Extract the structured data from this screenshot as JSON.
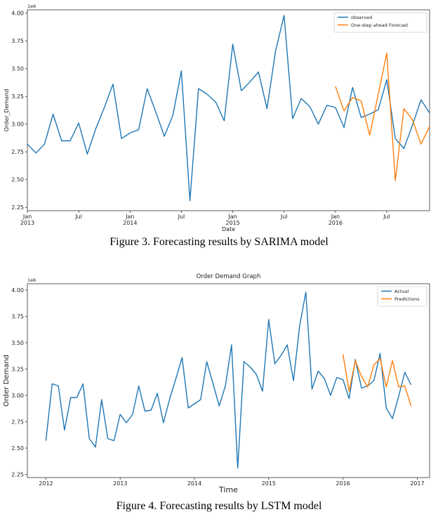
{
  "captions": {
    "fig3": "Figure 3. Forecasting results by SARIMA model",
    "fig4": "Figure 4. Forecasting results by LSTM model"
  },
  "chart_data": [
    {
      "type": "line",
      "title": "",
      "xlabel": "Date",
      "ylabel": "Order_Demand",
      "y_offset_label": "1e6",
      "ylim": [
        2.22,
        4.03
      ],
      "xlim": [
        "2013-01",
        "2016-12"
      ],
      "y_ticks": [
        "2.25",
        "2.50",
        "2.75",
        "3.00",
        "3.25",
        "3.50",
        "3.75",
        "4.00"
      ],
      "x_tick_labels": [
        {
          "at": "2013-01",
          "line1": "Jan",
          "line2": "2013"
        },
        {
          "at": "2013-07",
          "line1": "Jul",
          "line2": ""
        },
        {
          "at": "2014-01",
          "line1": "Jan",
          "line2": "2014"
        },
        {
          "at": "2014-07",
          "line1": "Jul",
          "line2": ""
        },
        {
          "at": "2015-01",
          "line1": "Jan",
          "line2": "2015"
        },
        {
          "at": "2015-07",
          "line1": "Jul",
          "line2": ""
        },
        {
          "at": "2016-01",
          "line1": "Jan",
          "line2": "2016"
        },
        {
          "at": "2016-07",
          "line1": "Jul",
          "line2": ""
        }
      ],
      "legend_position": "top-right",
      "grid": false,
      "series": [
        {
          "name": "observed",
          "color": "#1f77b4",
          "x": [
            "2013-01",
            "2013-02",
            "2013-03",
            "2013-04",
            "2013-05",
            "2013-06",
            "2013-07",
            "2013-08",
            "2013-09",
            "2013-10",
            "2013-11",
            "2013-12",
            "2014-01",
            "2014-02",
            "2014-03",
            "2014-04",
            "2014-05",
            "2014-06",
            "2014-07",
            "2014-08",
            "2014-09",
            "2014-10",
            "2014-11",
            "2014-12",
            "2015-01",
            "2015-02",
            "2015-03",
            "2015-04",
            "2015-05",
            "2015-06",
            "2015-07",
            "2015-08",
            "2015-09",
            "2015-10",
            "2015-11",
            "2015-12",
            "2016-01",
            "2016-02",
            "2016-03",
            "2016-04",
            "2016-05",
            "2016-06",
            "2016-07",
            "2016-08",
            "2016-09",
            "2016-10",
            "2016-11",
            "2016-12"
          ],
          "values": [
            2.82,
            2.74,
            2.82,
            3.09,
            2.85,
            2.85,
            3.01,
            2.73,
            2.96,
            3.15,
            3.36,
            2.87,
            2.92,
            2.95,
            3.32,
            3.11,
            2.89,
            3.08,
            3.48,
            2.31,
            3.32,
            3.27,
            3.2,
            3.03,
            3.72,
            3.3,
            3.38,
            3.47,
            3.14,
            3.66,
            3.98,
            3.05,
            3.23,
            3.16,
            3.0,
            3.17,
            3.15,
            2.97,
            3.33,
            3.06,
            3.09,
            3.13,
            3.4,
            2.87,
            2.78,
            2.99,
            3.22,
            3.1
          ]
        },
        {
          "name": "One-step ahead Forecast",
          "color": "#ff7f0e",
          "x": [
            "2016-01",
            "2016-02",
            "2016-03",
            "2016-04",
            "2016-05",
            "2016-06",
            "2016-07",
            "2016-08",
            "2016-09",
            "2016-10",
            "2016-11",
            "2016-12"
          ],
          "values": [
            3.34,
            3.12,
            3.24,
            3.21,
            2.9,
            3.27,
            3.64,
            2.49,
            3.14,
            3.04,
            2.82,
            2.98
          ]
        }
      ]
    },
    {
      "type": "line",
      "title": "Order Demand Graph",
      "xlabel": "Time",
      "ylabel": "Order Demand",
      "y_offset_label": "1e6",
      "ylim": [
        2.22,
        4.06
      ],
      "xlim": [
        "2011-10",
        "2017-03"
      ],
      "y_ticks": [
        "2.25",
        "2.50",
        "2.75",
        "3.00",
        "3.25",
        "3.50",
        "3.75",
        "4.00"
      ],
      "x_tick_labels": [
        {
          "at": "2012-01",
          "line1": "2012",
          "line2": ""
        },
        {
          "at": "2013-01",
          "line1": "2013",
          "line2": ""
        },
        {
          "at": "2014-01",
          "line1": "2014",
          "line2": ""
        },
        {
          "at": "2015-01",
          "line1": "2015",
          "line2": ""
        },
        {
          "at": "2016-01",
          "line1": "2016",
          "line2": ""
        },
        {
          "at": "2017-01",
          "line1": "2017",
          "line2": ""
        }
      ],
      "legend_position": "top-right",
      "grid": false,
      "series": [
        {
          "name": "Actual",
          "color": "#1f77b4",
          "x": [
            "2012-01",
            "2012-02",
            "2012-03",
            "2012-04",
            "2012-05",
            "2012-06",
            "2012-07",
            "2012-08",
            "2012-09",
            "2012-10",
            "2012-11",
            "2012-12",
            "2013-01",
            "2013-02",
            "2013-03",
            "2013-04",
            "2013-05",
            "2013-06",
            "2013-07",
            "2013-08",
            "2013-09",
            "2013-10",
            "2013-11",
            "2013-12",
            "2014-01",
            "2014-02",
            "2014-03",
            "2014-04",
            "2014-05",
            "2014-06",
            "2014-07",
            "2014-08",
            "2014-09",
            "2014-10",
            "2014-11",
            "2014-12",
            "2015-01",
            "2015-02",
            "2015-03",
            "2015-04",
            "2015-05",
            "2015-06",
            "2015-07",
            "2015-08",
            "2015-09",
            "2015-10",
            "2015-11",
            "2015-12",
            "2016-01",
            "2016-02",
            "2016-03",
            "2016-04",
            "2016-05",
            "2016-06",
            "2016-07",
            "2016-08",
            "2016-09",
            "2016-10",
            "2016-11",
            "2016-12"
          ],
          "values": [
            2.57,
            3.11,
            3.09,
            2.67,
            2.98,
            2.98,
            3.11,
            2.59,
            2.51,
            2.96,
            2.59,
            2.57,
            2.82,
            2.74,
            2.82,
            3.09,
            2.85,
            2.86,
            3.02,
            2.74,
            2.97,
            3.16,
            3.36,
            2.88,
            2.92,
            2.96,
            3.32,
            3.11,
            2.9,
            3.09,
            3.48,
            2.31,
            3.32,
            3.27,
            3.2,
            3.04,
            3.72,
            3.3,
            3.38,
            3.48,
            3.14,
            3.66,
            3.98,
            3.06,
            3.23,
            3.16,
            3.0,
            3.17,
            3.15,
            2.97,
            3.34,
            3.07,
            3.09,
            3.14,
            3.4,
            2.88,
            2.78,
            2.99,
            3.22,
            3.1
          ]
        },
        {
          "name": "Predictions",
          "color": "#ff7f0e",
          "x": [
            "2016-01",
            "2016-02",
            "2016-03",
            "2016-04",
            "2016-05",
            "2016-06",
            "2016-07",
            "2016-08",
            "2016-09",
            "2016-10",
            "2016-11",
            "2016-12"
          ],
          "values": [
            3.39,
            3.04,
            3.33,
            3.18,
            3.08,
            3.29,
            3.35,
            3.08,
            3.33,
            3.08,
            3.09,
            2.9
          ]
        }
      ]
    }
  ]
}
